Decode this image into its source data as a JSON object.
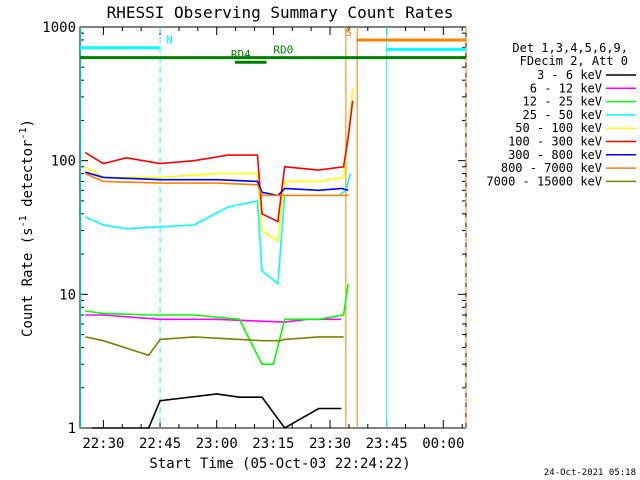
{
  "chart_data": {
    "type": "line",
    "title": "RHESSI Observing Summary Count Rates",
    "xlabel": "Start Time (05-Oct-03 22:24:22)",
    "ylabel": "Count Rate (s-1 detector-1)",
    "ylabel_base": "Count Rate (s",
    "ylabel_exp1": "-1",
    "ylabel_mid": " detector",
    "ylabel_exp2": "-1",
    "ylabel_end": ")",
    "x_range_min": [
      22.3967,
      24.1
    ],
    "y_scale": "log",
    "ylim": [
      1,
      1000
    ],
    "x_tick_labels": [
      "22:30",
      "22:45",
      "23:00",
      "23:15",
      "23:30",
      "23:45",
      "00:00"
    ],
    "x_ticks_min": [
      22.5,
      22.75,
      23.0,
      23.25,
      23.5,
      23.75,
      24.0
    ],
    "y_tick_labels": [
      "1",
      "10",
      "100",
      "1000"
    ],
    "legend_title": [
      "Det 1,3,4,5,6,9,",
      "FDecim 2, Att 0"
    ],
    "series": [
      {
        "name": "3 - 6 keV",
        "color": "#000000",
        "x": [
          22.45,
          22.7,
          22.75,
          23.0,
          23.1,
          23.2,
          23.3,
          23.45,
          23.55
        ],
        "y": [
          1,
          1,
          1.6,
          1.8,
          1.7,
          1.7,
          1,
          1.4,
          1.4
        ]
      },
      {
        "name": "6 - 12 keV",
        "color": "#ff00ff",
        "x": [
          22.42,
          22.5,
          22.75,
          23.0,
          23.2,
          23.3,
          23.4,
          23.55
        ],
        "y": [
          7,
          7,
          6.5,
          6.5,
          6.3,
          6.2,
          6.5,
          6.5
        ]
      },
      {
        "name": "12 - 25 keV",
        "color": "#00ff00",
        "x": [
          22.42,
          22.5,
          22.7,
          22.9,
          23.1,
          23.2,
          23.25,
          23.3,
          23.45,
          23.56,
          23.58
        ],
        "y": [
          7.5,
          7.2,
          7,
          7,
          6.5,
          3,
          3,
          6.5,
          6.5,
          7,
          12
        ]
      },
      {
        "name": "25 - 50 keV",
        "color": "#00ffff",
        "x": [
          22.42,
          22.5,
          22.6,
          22.75,
          22.9,
          23.05,
          23.18,
          23.2,
          23.27,
          23.3,
          23.45,
          23.54,
          23.57,
          23.59
        ],
        "y": [
          38,
          33,
          31,
          32,
          33,
          45,
          50,
          15,
          12,
          55,
          55,
          55,
          60,
          80
        ]
      },
      {
        "name": "50 - 100 keV",
        "color": "#ffff00",
        "x": [
          22.42,
          22.5,
          22.75,
          23.0,
          23.18,
          23.2,
          23.27,
          23.3,
          23.45,
          23.56,
          23.58,
          23.6
        ],
        "y": [
          90,
          75,
          75,
          80,
          80,
          30,
          25,
          70,
          70,
          75,
          150,
          350
        ]
      },
      {
        "name": "100 - 300 keV",
        "color": "#ff0000",
        "x": [
          22.42,
          22.5,
          22.6,
          22.75,
          22.9,
          23.05,
          23.18,
          23.2,
          23.27,
          23.3,
          23.45,
          23.56,
          23.58,
          23.6
        ],
        "y": [
          115,
          95,
          105,
          95,
          100,
          110,
          110,
          40,
          35,
          90,
          85,
          90,
          150,
          280
        ]
      },
      {
        "name": "300 - 800 keV",
        "color": "#0000ff",
        "x": [
          22.42,
          22.5,
          22.75,
          23.0,
          23.18,
          23.2,
          23.27,
          23.3,
          23.45,
          23.55,
          23.58
        ],
        "y": [
          82,
          75,
          72,
          72,
          70,
          58,
          55,
          62,
          60,
          62,
          60
        ]
      },
      {
        "name": "800 - 7000 keV",
        "color": "#ff8000",
        "x": [
          22.42,
          22.5,
          22.75,
          23.0,
          23.18,
          23.2,
          23.3,
          23.45,
          23.55,
          23.58
        ],
        "y": [
          80,
          70,
          68,
          68,
          66,
          55,
          55,
          55,
          55,
          55
        ]
      },
      {
        "name": "7000 - 15000 keV",
        "color": "#808000",
        "x": [
          22.42,
          22.5,
          22.7,
          22.75,
          22.9,
          23.1,
          23.2,
          23.28,
          23.3,
          23.45,
          23.56
        ],
        "y": [
          4.8,
          4.5,
          3.5,
          4.6,
          4.8,
          4.6,
          4.5,
          4.5,
          4.6,
          4.8,
          4.8
        ]
      }
    ],
    "annotations": [
      {
        "label": "N",
        "color": "#00ffff",
        "x0": 22.3967,
        "x1": 22.75,
        "level": 700
      },
      {
        "label": "S",
        "color": "#ff8000",
        "x0": 23.62,
        "x1": 24.1,
        "level": 800
      },
      {
        "label": "",
        "color": "#00ffff",
        "x0": 23.75,
        "x1": 24.1,
        "level": 680
      },
      {
        "label": "RD0",
        "color": "#008000",
        "x0": 22.3967,
        "x1": 24.1,
        "level": 590
      },
      {
        "label": "RD4",
        "color": "#008000",
        "x0": 23.08,
        "x1": 23.22,
        "level": 545
      }
    ],
    "vertical_markers": [
      {
        "color": "#00ffff",
        "x": 22.4,
        "style": "solid"
      },
      {
        "color": "#00ffff",
        "x": 22.75,
        "style": "dashed"
      },
      {
        "color": "#ff8000",
        "x": 23.57,
        "style": "solid"
      },
      {
        "color": "#ff8000",
        "x": 23.62,
        "style": "solid"
      },
      {
        "color": "#00ffff",
        "x": 23.75,
        "style": "solid"
      },
      {
        "color": "#ff8000",
        "x": 24.1,
        "style": "dashed"
      }
    ]
  },
  "timestamp": "24-Oct-2021 05:18"
}
